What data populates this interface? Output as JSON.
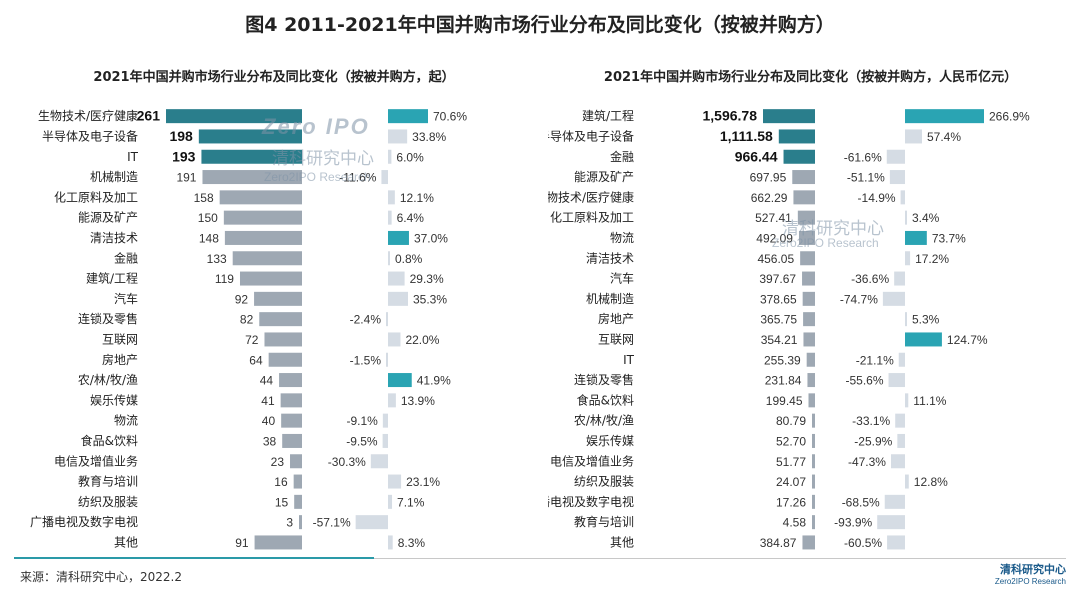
{
  "title": "图4 2011-2021年中国并购市场行业分布及同比变化（按被并购方）",
  "source": "来源：清科研究中心，2022.2",
  "brand": {
    "cn": "清科研究中心",
    "en": "Zero2IPO Research"
  },
  "watermark": {
    "logo": "Zero IPO",
    "cn": "清科研究中心",
    "en": "Zero2IPO Research"
  },
  "colors": {
    "dark_bar": "#2a7e8c",
    "gray_bar": "#9ea8b3",
    "growth_pos": "#2aa4b3",
    "growth_light": "#d5dce4"
  },
  "chart_data": [
    {
      "type": "bar",
      "title": "2021年中国并购市场行业分布及同比变化（按被并购方，起）",
      "categories": [
        "生物技术/医疗健康",
        "半导体及电子设备",
        "IT",
        "机械制造",
        "化工原料及加工",
        "能源及矿产",
        "清洁技术",
        "金融",
        "建筑/工程",
        "汽车",
        "连锁及零售",
        "互联网",
        "房地产",
        "农/林/牧/渔",
        "娱乐传媒",
        "物流",
        "食品&饮料",
        "电信及增值业务",
        "教育与培训",
        "纺织及服装",
        "广播电视及数字电视",
        "其他"
      ],
      "values": [
        261,
        198,
        193,
        191,
        158,
        150,
        148,
        133,
        119,
        92,
        82,
        72,
        64,
        44,
        41,
        40,
        38,
        23,
        16,
        15,
        3,
        91
      ],
      "value_labels": [
        "261",
        "198",
        "193",
        "191",
        "158",
        "150",
        "148",
        "133",
        "119",
        "92",
        "82",
        "72",
        "64",
        "44",
        "41",
        "40",
        "38",
        "23",
        "16",
        "15",
        "3",
        "91"
      ],
      "highlight_top": 3,
      "growth": [
        70.6,
        33.8,
        6.0,
        -11.6,
        12.1,
        6.4,
        37.0,
        0.8,
        29.3,
        35.3,
        -2.4,
        22.0,
        -1.5,
        41.9,
        13.9,
        -9.1,
        -9.5,
        -30.3,
        23.1,
        7.1,
        -57.1,
        8.3
      ],
      "growth_labels": [
        "70.6%",
        "33.8%",
        "6.0%",
        "-11.6%",
        "12.1%",
        "6.4%",
        "37.0%",
        "0.8%",
        "29.3%",
        "35.3%",
        "-2.4%",
        "22.0%",
        "-1.5%",
        "41.9%",
        "13.9%",
        "-9.1%",
        "-9.5%",
        "-30.3%",
        "23.1%",
        "7.1%",
        "-57.1%",
        "8.3%"
      ],
      "growth_highlight": [
        0,
        6,
        13
      ]
    },
    {
      "type": "bar",
      "title": "2021年中国并购市场行业分布及同比变化（按被并购方，人民币亿元）",
      "categories": [
        "建筑/工程",
        "半导体及电子设备",
        "金融",
        "能源及矿产",
        "生物技术/医疗健康",
        "化工原料及加工",
        "物流",
        "清洁技术",
        "汽车",
        "机械制造",
        "房地产",
        "互联网",
        "IT",
        "连锁及零售",
        "食品&饮料",
        "农/林/牧/渔",
        "娱乐传媒",
        "电信及增值业务",
        "纺织及服装",
        "广播电视及数字电视",
        "教育与培训",
        "其他"
      ],
      "values": [
        1596.78,
        1111.58,
        966.44,
        697.95,
        662.29,
        527.41,
        492.09,
        456.05,
        397.67,
        378.65,
        365.75,
        354.21,
        255.39,
        231.84,
        199.45,
        80.79,
        52.7,
        51.77,
        24.07,
        17.26,
        4.58,
        384.87
      ],
      "value_labels": [
        "1,596.78",
        "1,111.58",
        "966.44",
        "697.95",
        "662.29",
        "527.41",
        "492.09",
        "456.05",
        "397.67",
        "378.65",
        "365.75",
        "354.21",
        "255.39",
        "231.84",
        "199.45",
        "80.79",
        "52.70",
        "51.77",
        "24.07",
        "17.26",
        "4.58",
        "384.87"
      ],
      "highlight_top": 3,
      "growth": [
        266.9,
        57.4,
        -61.6,
        -51.1,
        -14.9,
        3.4,
        73.7,
        17.2,
        -36.6,
        -74.7,
        5.3,
        124.7,
        -21.1,
        -55.6,
        11.1,
        -33.1,
        -25.9,
        -47.3,
        12.8,
        -68.5,
        -93.9,
        -60.5
      ],
      "growth_labels": [
        "266.9%",
        "57.4%",
        "-61.6%",
        "-51.1%",
        "-14.9%",
        "3.4%",
        "73.7%",
        "17.2%",
        "-36.6%",
        "-74.7%",
        "5.3%",
        "124.7%",
        "-21.1%",
        "-55.6%",
        "11.1%",
        "-33.1%",
        "-25.9%",
        "-47.3%",
        "12.8%",
        "-68.5%",
        "-93.9%",
        "-60.5%"
      ],
      "growth_highlight": [
        0,
        6,
        11
      ]
    }
  ]
}
